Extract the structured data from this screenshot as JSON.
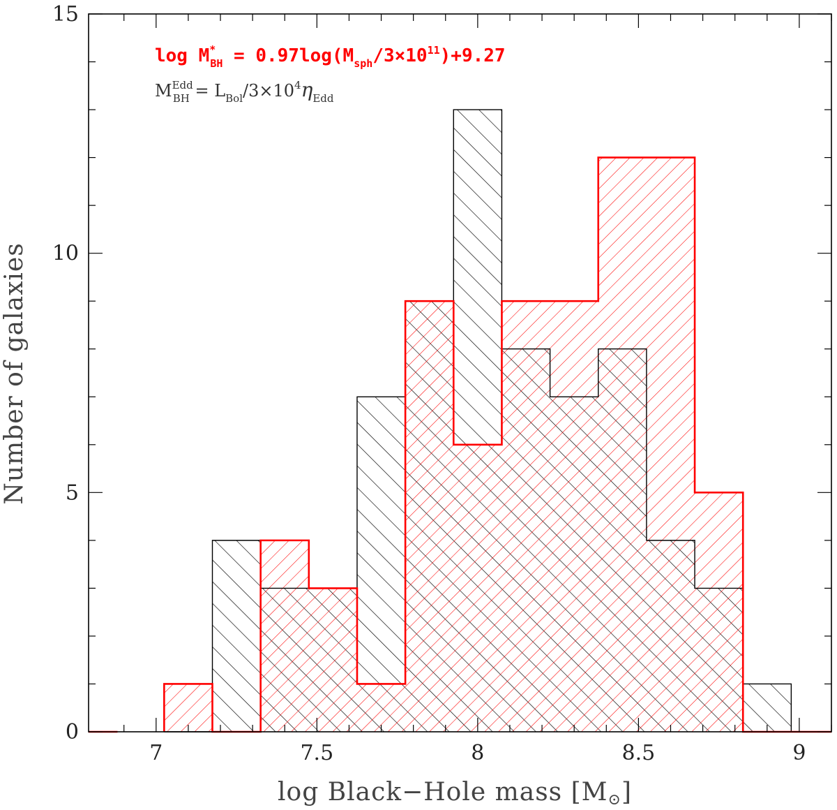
{
  "chart_data": {
    "type": "bar",
    "subtype": "step-histogram",
    "xlabel_prefix": "log Black−Hole mass [M",
    "xlabel_suffix": "]",
    "xlabel_symbol": "⊙",
    "ylabel": "Number of galaxies",
    "xlim": [
      6.79,
      9.1
    ],
    "ylim": [
      0,
      15
    ],
    "x_ticks": [
      7,
      7.5,
      8,
      8.5,
      9
    ],
    "x_tick_labels": [
      "7",
      "7.5",
      "8",
      "8.5",
      "9"
    ],
    "y_ticks": [
      0,
      5,
      10,
      15
    ],
    "y_tick_labels": [
      "0",
      "5",
      "10",
      "15"
    ],
    "bin_edges": [
      7.025,
      7.175,
      7.325,
      7.475,
      7.625,
      7.775,
      7.925,
      8.075,
      8.225,
      8.375,
      8.525,
      8.675,
      8.825,
      8.975
    ],
    "series": [
      {
        "name": "M_BH^Edd",
        "color": "#000000",
        "hatch": "forward-diagonal",
        "values": [
          0,
          4,
          3,
          3,
          7,
          9,
          13,
          8,
          7,
          8,
          4,
          3,
          1
        ]
      },
      {
        "name": "log M*_BH",
        "color": "#ff0000",
        "hatch": "back-diagonal",
        "values": [
          1,
          0,
          4,
          3,
          1,
          9,
          6,
          9,
          9,
          12,
          12,
          5,
          0
        ]
      }
    ],
    "legend": {
      "placement": "top-left",
      "red_text": "log M*BH = 0.97log(Msph/3×1011)+9.27",
      "red_parts": {
        "a": "log M",
        "sup": "*",
        "sub": "BH",
        "b": " = 0.97log(M",
        "sub2": "sph",
        "c": "/3×10",
        "sup2": "11",
        "d": ")+9.27"
      },
      "black_text": "MEddBH = LBol/3×104ηEdd",
      "black_parts": {
        "a": "M",
        "sup": "Edd",
        "sub": "BH",
        "b": " = L",
        "sub2": "Bol",
        "c": "/3×10",
        "sup2": "4",
        "eta": "η",
        "sub3": "Edd"
      }
    }
  }
}
